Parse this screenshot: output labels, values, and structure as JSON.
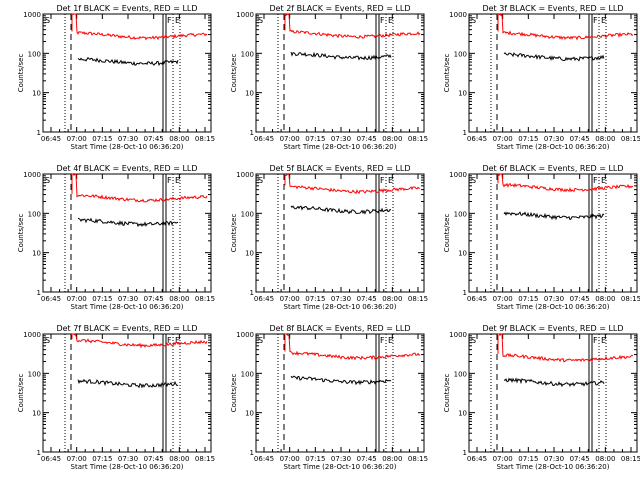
{
  "chart_data": [
    {
      "type": "line",
      "title": "Det 1f BLACK = Events, RED = LLD",
      "xlabel": "Start Time (28-Oct-10 06:36:20)",
      "ylabel": "Counts/sec",
      "black_level": 65,
      "red_level": 300
    },
    {
      "type": "line",
      "title": "Det 2f BLACK = Events, RED = LLD",
      "xlabel": "Start Time (28-Oct-10 06:36:20)",
      "ylabel": "Counts/sec",
      "black_level": 90,
      "red_level": 320
    },
    {
      "type": "line",
      "title": "Det 3f BLACK = Events, RED = LLD",
      "xlabel": "Start Time (28-Oct-10 06:36:20)",
      "ylabel": "Counts/sec",
      "black_level": 85,
      "red_level": 300
    },
    {
      "type": "line",
      "title": "Det 4f BLACK = Events, RED = LLD",
      "xlabel": "Start Time (28-Oct-10 06:36:20)",
      "ylabel": "Counts/sec",
      "black_level": 62,
      "red_level": 260
    },
    {
      "type": "line",
      "title": "Det 5f BLACK = Events, RED = LLD",
      "xlabel": "Start Time (28-Oct-10 06:36:20)",
      "ylabel": "Counts/sec",
      "black_level": 130,
      "red_level": 430
    },
    {
      "type": "line",
      "title": "Det 6f BLACK = Events, RED = LLD",
      "xlabel": "Start Time (28-Oct-10 06:36:20)",
      "ylabel": "Counts/sec",
      "black_level": 92,
      "red_level": 480
    },
    {
      "type": "line",
      "title": "Det 7f BLACK = Events, RED = LLD",
      "xlabel": "Start Time (28-Oct-10 06:36:20)",
      "ylabel": "Counts/sec",
      "black_level": 58,
      "red_level": 620
    },
    {
      "type": "line",
      "title": "Det 8f BLACK = Events, RED = LLD",
      "xlabel": "Start Time (28-Oct-10 06:36:20)",
      "ylabel": "Counts/sec",
      "black_level": 70,
      "red_level": 300
    },
    {
      "type": "line",
      "title": "Det 9f BLACK = Events, RED = LLD",
      "xlabel": "Start Time (28-Oct-10 06:36:20)",
      "ylabel": "Counts/sec",
      "black_level": 62,
      "red_level": 260
    }
  ],
  "axes": {
    "x_ticks": [
      "06:45",
      "07:00",
      "07:15",
      "07:30",
      "07:45",
      "08:00",
      "08:15"
    ],
    "y_ticks": [
      "1",
      "10",
      "100",
      "1000"
    ],
    "ylim": [
      1,
      1000
    ],
    "y_scale": "log"
  },
  "markers": {
    "start": "S",
    "flare": "F",
    "end": "E"
  },
  "colors": {
    "events": "#000000",
    "lld": "#ff0000",
    "axes": "#000000"
  }
}
